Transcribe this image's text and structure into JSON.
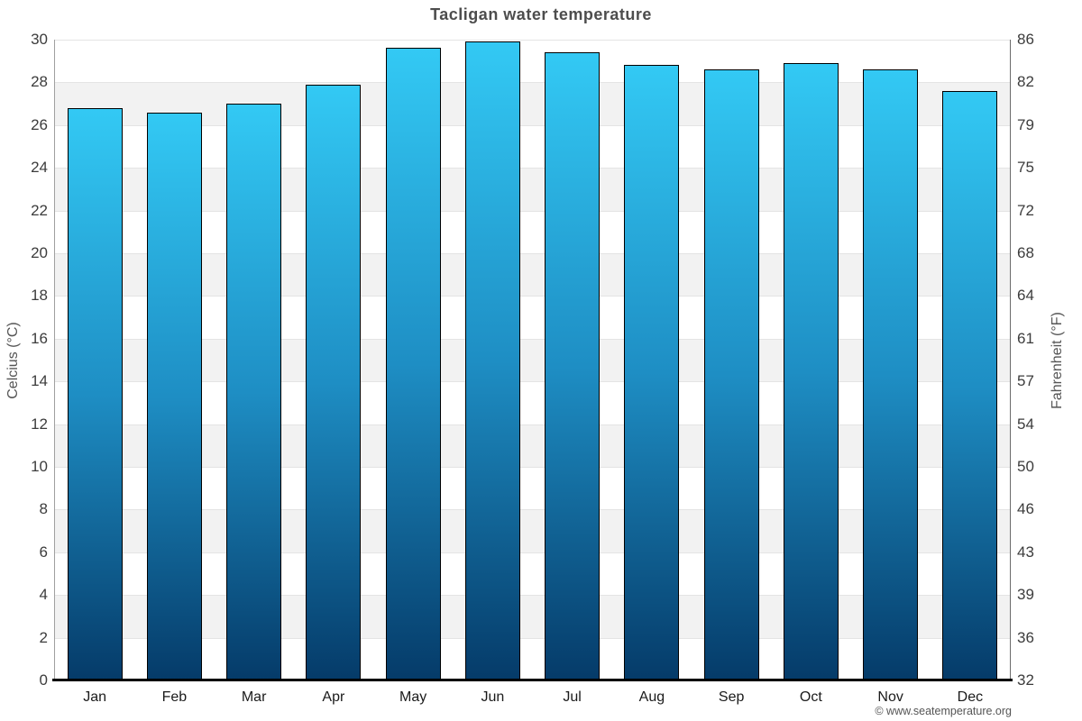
{
  "page": {
    "title": "Tacligan water temperature",
    "credit": "© www.seatemperature.org"
  },
  "chart_data": {
    "type": "bar",
    "title": "Tacligan water temperature",
    "categories": [
      "Jan",
      "Feb",
      "Mar",
      "Apr",
      "May",
      "Jun",
      "Jul",
      "Aug",
      "Sep",
      "Oct",
      "Nov",
      "Dec"
    ],
    "series": [
      {
        "name": "Water temperature",
        "unit": "°C",
        "values": [
          26.8,
          26.6,
          27.0,
          27.9,
          29.6,
          29.9,
          29.4,
          28.8,
          28.6,
          28.9,
          28.6,
          27.6
        ]
      }
    ],
    "ylabel": "Celcius (°C)",
    "ylabel_right": "Fahrenheit (°F)",
    "ylim": [
      0,
      30
    ],
    "yticks": [
      30,
      28,
      26,
      24,
      22,
      20,
      18,
      16,
      14,
      12,
      10,
      8,
      6,
      4,
      2,
      0
    ],
    "yticks_right": [
      86,
      82,
      79,
      75,
      72,
      68,
      64,
      61,
      57,
      54,
      50,
      46,
      43,
      39,
      36,
      32
    ],
    "grid": "horizontal-bands-alternating",
    "legend": "none",
    "colors": {
      "bar_gradient_top": "#33c9f4",
      "bar_gradient_mid": "#1e8ec4",
      "bar_gradient_bottom": "#053b69",
      "bar_border": "#000000",
      "band_alt": "#f2f2f2",
      "band_main": "#ffffff",
      "gridline": "#e4e4e4",
      "axis_line_left": "#a0a0a0",
      "axis_line_right": "#6b6b6b",
      "baseline": "#000000",
      "title": "#4d4d4d",
      "tick": "#3c3c3c",
      "axis_label": "#555555",
      "credit": "#555555"
    }
  }
}
